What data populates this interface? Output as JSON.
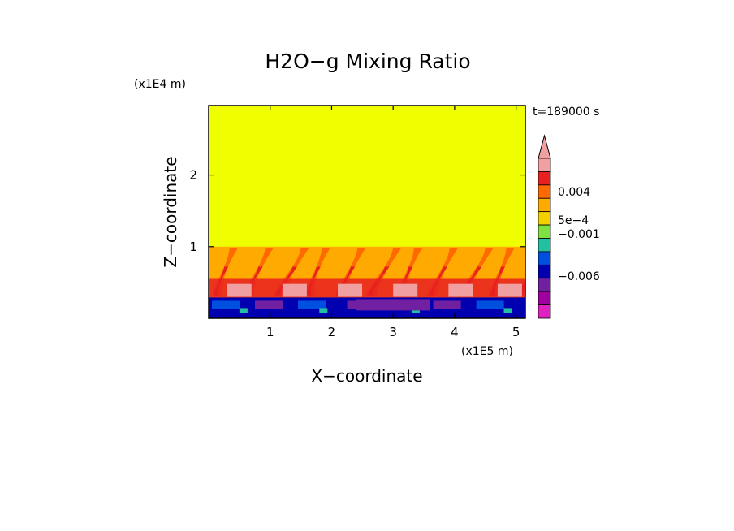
{
  "chart_data": {
    "type": "heatmap",
    "title": "H2O−g Mixing Ratio",
    "xlabel": "X−coordinate",
    "ylabel": "Z−coordinate",
    "x_unit": "(x1E5 m)",
    "y_unit": "(x1E4 m)",
    "time_label": "t=189000 s",
    "xlim": [
      0,
      5.15
    ],
    "ylim": [
      0,
      2.97
    ],
    "x_ticks": [
      "1",
      "2",
      "3",
      "4",
      "5"
    ],
    "y_ticks": [
      "1",
      "2"
    ],
    "colorbar": {
      "levels": [
        {
          "color": "#f0a0a0"
        },
        {
          "color": "#e82020"
        },
        {
          "color": "#ff6a00"
        },
        {
          "color": "#ffaa00"
        },
        {
          "color": "#f5d000"
        },
        {
          "color": "#80e040"
        },
        {
          "color": "#20c0a0"
        },
        {
          "color": "#0050e0"
        },
        {
          "color": "#0000b0"
        },
        {
          "color": "#7020a0"
        },
        {
          "color": "#a000a0"
        },
        {
          "color": "#e020c0"
        }
      ],
      "tick_labels": [
        "0.004",
        "5e−4",
        "−0.001",
        "−0.006"
      ],
      "extend": "top"
    },
    "regions": {
      "upper_fill": "#f0ff00",
      "plume_colors": [
        "#ffaa00",
        "#ff6a00",
        "#e82020",
        "#f0a0a0"
      ],
      "lower_colors": [
        "#0000b0",
        "#0050e0",
        "#7020a0",
        "#20c0a0"
      ]
    }
  }
}
